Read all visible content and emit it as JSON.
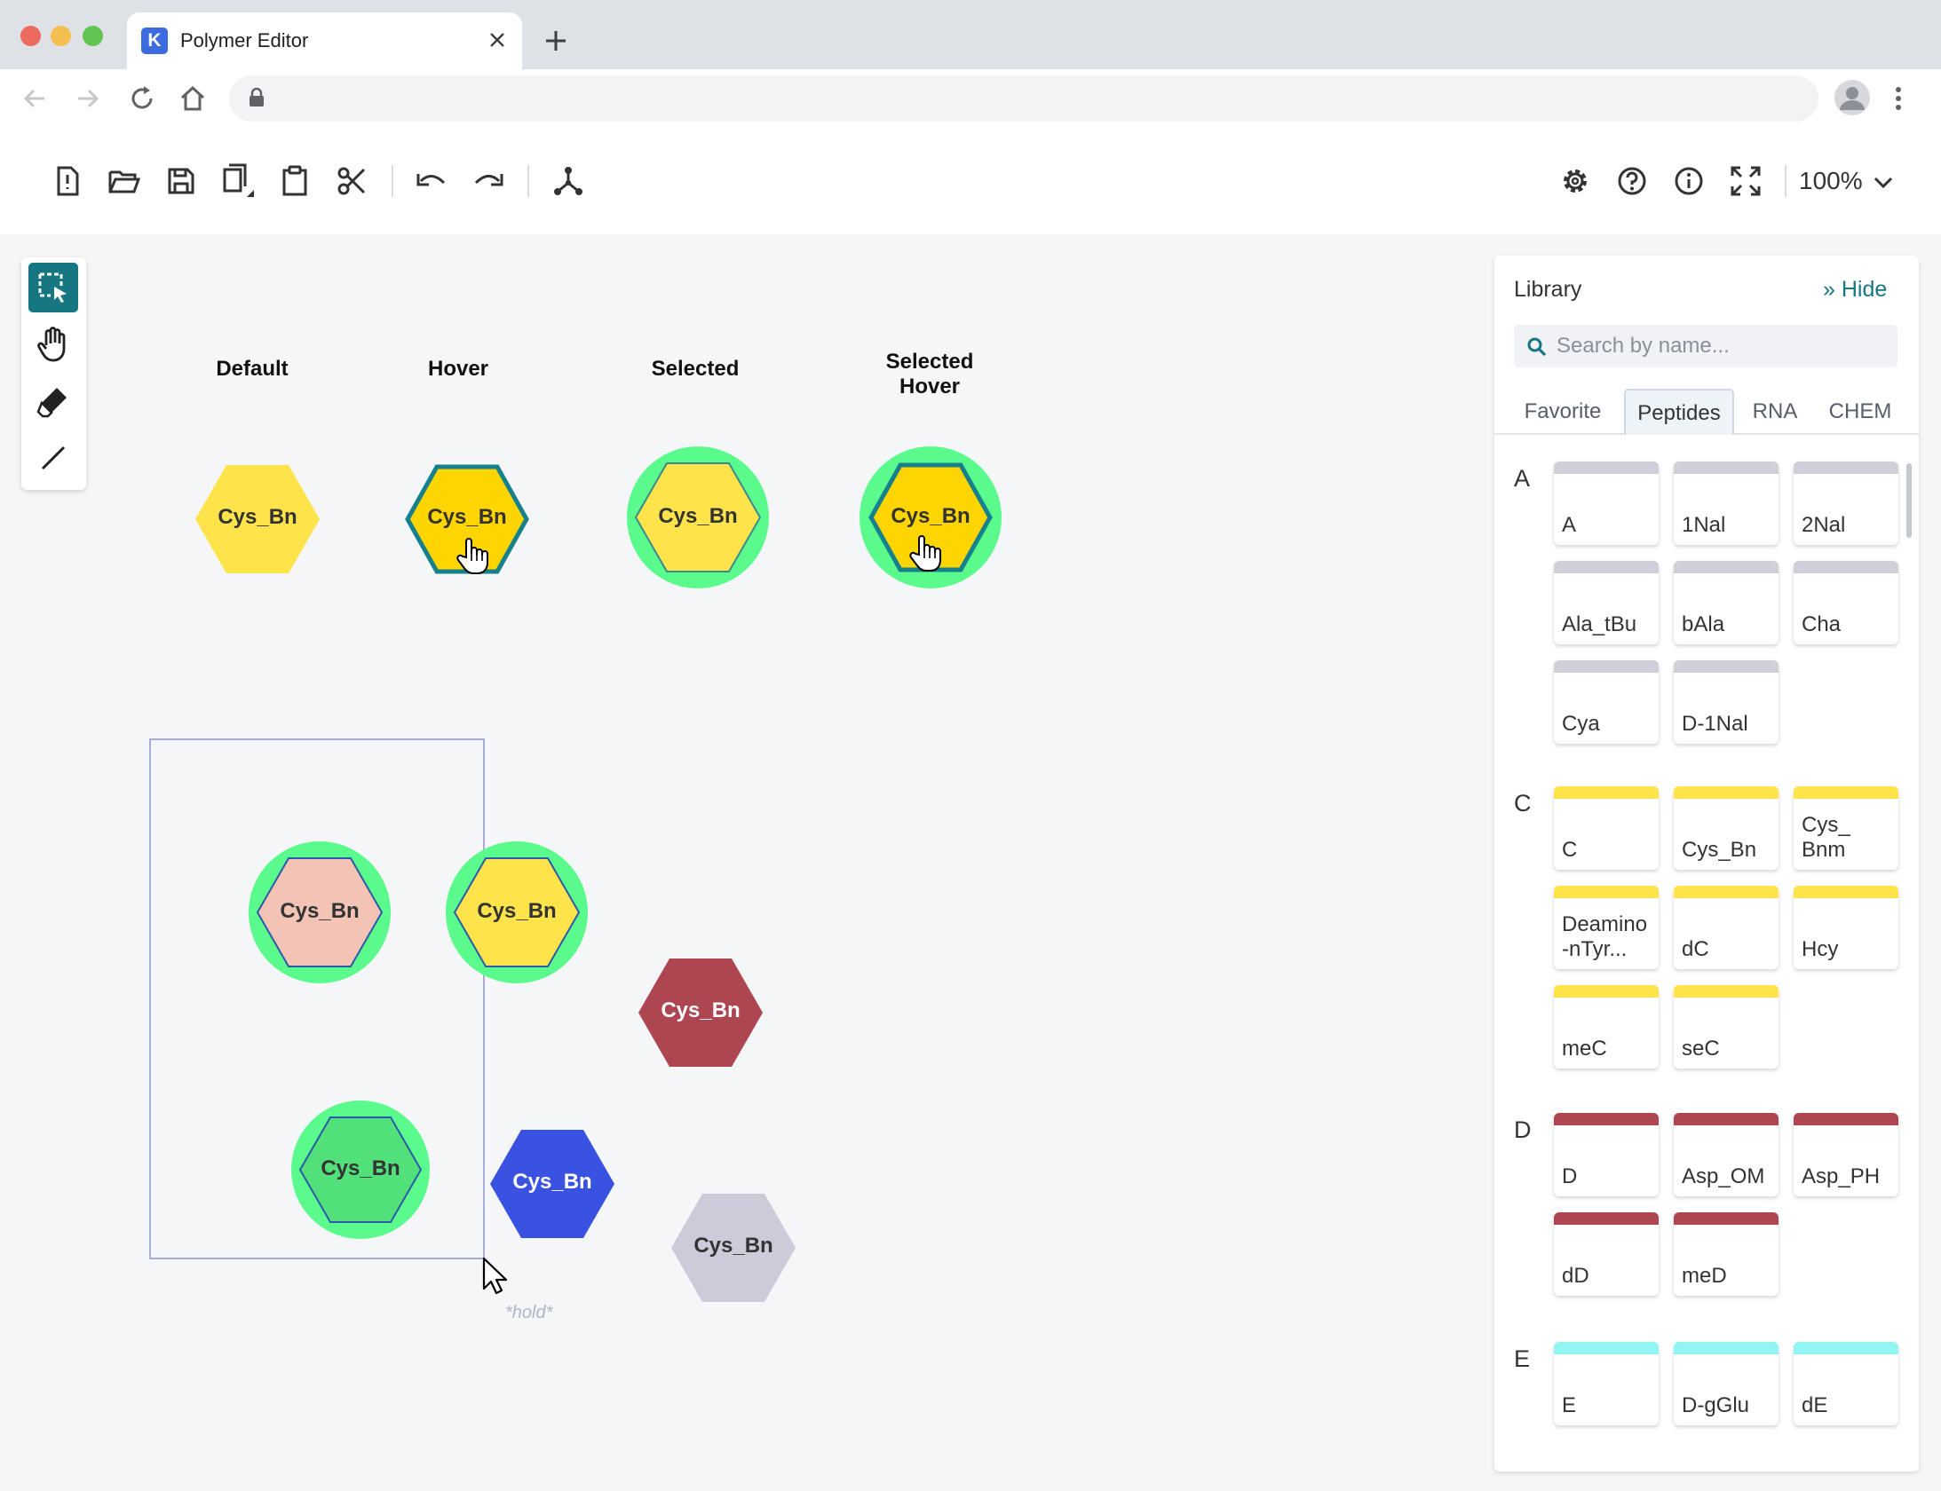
{
  "browser": {
    "tab_title": "Polymer Editor",
    "tab_favicon_letter": "K",
    "traffic_lights": [
      "#ed6a5e",
      "#f5bf4f",
      "#61c554"
    ]
  },
  "toolbar": {
    "zoom_level": "100%",
    "icons": [
      "new-file-icon",
      "open-folder-icon",
      "save-icon",
      "copy-icon",
      "paste-icon",
      "cut-icon",
      "undo-icon",
      "redo-icon",
      "layout-icon",
      "settings-icon",
      "help-icon",
      "info-icon",
      "fullscreen-icon"
    ]
  },
  "left_tools": [
    "select-rectangle-icon",
    "hand-icon",
    "eraser-icon",
    "bond-line-icon"
  ],
  "canvas": {
    "column_labels": [
      "Default",
      "Hover",
      "Selected",
      "Selected\nHover"
    ],
    "monomer_label": "Cys_Bn",
    "hold_hint": "*hold*",
    "colors": {
      "yellow": "#fee34a",
      "yellow_hover": "#fed500",
      "hover_stroke": "#16808d",
      "selected_ring": "#5bfa8d",
      "salmon": "#f3c4b5",
      "green": "#51e07a",
      "red": "#ae4652",
      "blue": "#3a52e2",
      "gray": "#cdcbd9"
    }
  },
  "library": {
    "title": "Library",
    "hide_label": "Hide",
    "search_placeholder": "Search by name...",
    "tabs": [
      "Favorite",
      "Peptides",
      "RNA",
      "CHEM"
    ],
    "active_tab": "Peptides",
    "sections": [
      {
        "letter": "A",
        "color": "#cfcfd9",
        "items": [
          "A",
          "1Nal",
          "2Nal",
          "Ala_tBu",
          "bAla",
          "Cha",
          "Cya",
          "D-1Nal"
        ]
      },
      {
        "letter": "C",
        "color": "#fee34a",
        "items": [
          "C",
          "Cys_Bn",
          "Cys_\nBnm",
          "Deamino\n-nTyr...",
          "dC",
          "Hcy",
          "meC",
          "seC"
        ]
      },
      {
        "letter": "D",
        "color": "#ae4652",
        "items": [
          "D",
          "Asp_OM",
          "Asp_PH",
          "dD",
          "meD"
        ]
      },
      {
        "letter": "E",
        "color": "#92f5f3",
        "items": [
          "E",
          "D-gGlu",
          "dE"
        ]
      }
    ]
  }
}
